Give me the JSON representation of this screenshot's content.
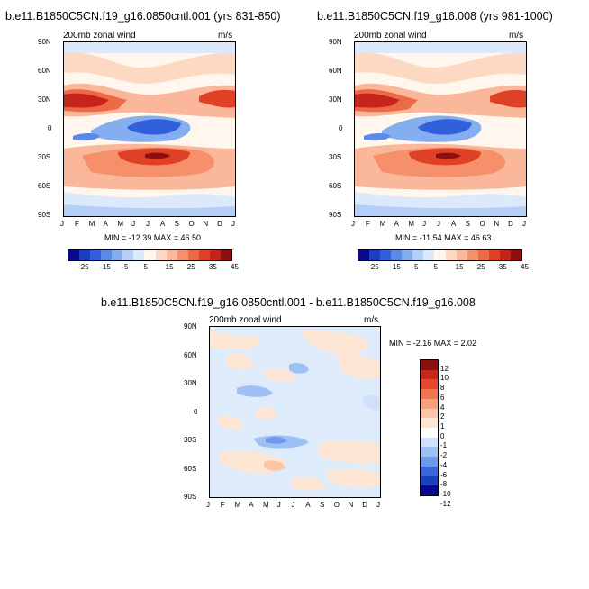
{
  "panels": [
    {
      "title": "b.e11.B1850C5CN.f19_g16.0850cntl.001 (yrs 831-850)",
      "left_label": "200mb zonal wind",
      "right_label": "m/s",
      "stats": "MIN = -12.39 MAX =  46.50",
      "colorbar_ticks": [
        "-25",
        "-15",
        "-5",
        "5",
        "15",
        "25",
        "35",
        "45"
      ]
    },
    {
      "title": "b.e11.B1850C5CN.f19_g16.008 (yrs 981-1000)",
      "left_label": "200mb zonal wind",
      "right_label": "m/s",
      "stats": "MIN = -11.54 MAX =  46.63",
      "colorbar_ticks": [
        "-25",
        "-15",
        "-5",
        "5",
        "15",
        "25",
        "35",
        "45"
      ]
    },
    {
      "title": "b.e11.B1850C5CN.f19_g16.0850cntl.001 - b.e11.B1850C5CN.f19_g16.008",
      "left_label": "200mb zonal wind",
      "right_label": "m/s",
      "stats": "MIN =  -2.16 MAX =   2.02",
      "colorbar_ticks": [
        "12",
        "10",
        "8",
        "6",
        "4",
        "2",
        "1",
        "0",
        "-1",
        "-2",
        "-4",
        "-6",
        "-8",
        "-10",
        "-12"
      ]
    }
  ],
  "axes": {
    "x_ticks": [
      "J",
      "F",
      "M",
      "A",
      "M",
      "J",
      "J",
      "A",
      "S",
      "O",
      "N",
      "D",
      "J"
    ],
    "y_ticks": [
      "90N",
      "60N",
      "30N",
      "0",
      "30S",
      "60S",
      "90S"
    ]
  },
  "colors": {
    "full_palette": [
      "#08088a",
      "#1c3fbf",
      "#3060dc",
      "#5a8ae8",
      "#85aef0",
      "#b4cff7",
      "#dce9fb",
      "#fff7ee",
      "#fdd9c4",
      "#fab79a",
      "#f5906b",
      "#ec6a45",
      "#df4127",
      "#c4241a",
      "#8c1010"
    ],
    "diff_palette": [
      "#08088a",
      "#1c3fbf",
      "#3a68dc",
      "#6d9aeb",
      "#9fc0f4",
      "#cfe0fa",
      "#ffffff",
      "#fde6d4",
      "#fbc6a8",
      "#f7a07c",
      "#f07650",
      "#e24a2c",
      "#c8261b",
      "#8c1010"
    ]
  },
  "chart_data": [
    {
      "type": "heatmap",
      "title": "b.e11.B1850C5CN.f19_g16.0850cntl.001 (yrs 831-850)",
      "xlabel": "",
      "ylabel": "",
      "x": [
        "J",
        "F",
        "M",
        "A",
        "M",
        "J",
        "J",
        "A",
        "S",
        "O",
        "N",
        "D",
        "J"
      ],
      "y": [
        90,
        60,
        30,
        0,
        -30,
        -60,
        -90
      ],
      "variable": "200mb zonal wind",
      "units": "m/s",
      "min": -12.39,
      "max": 46.5,
      "levels": [
        -30,
        -25,
        -20,
        -15,
        -10,
        -5,
        0,
        5,
        10,
        15,
        20,
        25,
        30,
        35,
        40,
        45,
        50
      ]
    },
    {
      "type": "heatmap",
      "title": "b.e11.B1850C5CN.f19_g16.008 (yrs 981-1000)",
      "xlabel": "",
      "ylabel": "",
      "x": [
        "J",
        "F",
        "M",
        "A",
        "M",
        "J",
        "J",
        "A",
        "S",
        "O",
        "N",
        "D",
        "J"
      ],
      "y": [
        90,
        60,
        30,
        0,
        -30,
        -60,
        -90
      ],
      "variable": "200mb zonal wind",
      "units": "m/s",
      "min": -11.54,
      "max": 46.63,
      "levels": [
        -30,
        -25,
        -20,
        -15,
        -10,
        -5,
        0,
        5,
        10,
        15,
        20,
        25,
        30,
        35,
        40,
        45,
        50
      ]
    },
    {
      "type": "heatmap",
      "title": "b.e11.B1850C5CN.f19_g16.0850cntl.001 - b.e11.B1850C5CN.f19_g16.008",
      "xlabel": "",
      "ylabel": "",
      "x": [
        "J",
        "F",
        "M",
        "A",
        "M",
        "J",
        "J",
        "A",
        "S",
        "O",
        "N",
        "D",
        "J"
      ],
      "y": [
        90,
        60,
        30,
        0,
        -30,
        -60,
        -90
      ],
      "variable": "200mb zonal wind",
      "units": "m/s",
      "min": -2.16,
      "max": 2.02,
      "levels": [
        -12,
        -10,
        -8,
        -6,
        -4,
        -2,
        -1,
        0,
        1,
        2,
        4,
        6,
        8,
        10,
        12
      ]
    }
  ]
}
